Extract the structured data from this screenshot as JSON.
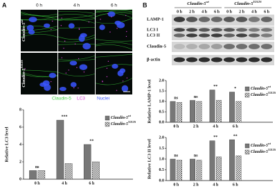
{
  "panel_a": {
    "label": "A",
    "columns": [
      "0 h",
      "4 h",
      "6 h"
    ],
    "rows": [
      {
        "name": "Claudin-5",
        "superscript": "wt"
      },
      {
        "name": "Claudin-5",
        "superscript": "Y212S"
      }
    ],
    "stain_legend": [
      {
        "name": "Claudin-5",
        "color": "#3ccf3c"
      },
      {
        "name": "LC3",
        "color": "#d23fd2"
      },
      {
        "name": "Nuclei",
        "color": "#3a55ff"
      }
    ],
    "chart": {
      "type": "bar",
      "y_label": "Relative LC3 level",
      "categories": [
        "0 h",
        "4 h",
        "6 h"
      ],
      "series": [
        {
          "name": "Claudin-5",
          "superscript": "wt",
          "color": "#777777",
          "values": [
            1.0,
            6.8,
            4.0
          ]
        },
        {
          "name": "Claudin-5",
          "superscript": "Y212S",
          "color": "#9a9a9a",
          "pattern": "checker",
          "values": [
            1.0,
            1.8,
            2.0
          ]
        }
      ],
      "significance": [
        "ns",
        "***",
        "**"
      ],
      "ylim": [
        0,
        8
      ],
      "yticks": [
        0,
        2,
        4,
        6,
        8
      ]
    }
  },
  "panel_b": {
    "label": "B",
    "blot": {
      "groups": [
        {
          "name": "Claudin-5",
          "superscript": "wt"
        },
        {
          "name": "Claudin-5",
          "superscript": "Y212S"
        }
      ],
      "lanes": [
        "0 h",
        "2 h",
        "4 h",
        "6 h",
        "0 h",
        "2 h",
        "4 h",
        "6 h"
      ],
      "bands": [
        "LAMP-1",
        "LC3 I",
        "LC3 II",
        "Claudin-5",
        "β-actin"
      ]
    },
    "charts": [
      {
        "type": "bar",
        "y_label": "Relative LAMP-1 level",
        "categories": [
          "0 h",
          "2 h",
          "4 h",
          "6 h"
        ],
        "series": [
          {
            "name": "Claudin-5",
            "superscript": "wt",
            "color": "#777777",
            "values": [
              1.0,
              1.05,
              1.55,
              1.45
            ]
          },
          {
            "name": "Claudin-5",
            "superscript": "Y212S",
            "color": "#9a9a9a",
            "pattern": "checker",
            "values": [
              0.95,
              1.0,
              1.05,
              1.0
            ]
          }
        ],
        "significance": [
          "ns",
          "ns",
          "**",
          "*"
        ],
        "ylim": [
          0,
          2
        ],
        "yticks": [
          {
            "value": 0,
            "label": "0.0"
          },
          0.5,
          {
            "value": 1,
            "label": "1.0"
          },
          1.5,
          {
            "value": 2,
            "label": "2.0"
          }
        ]
      },
      {
        "type": "bar",
        "y_label": "Relative LC3 II level",
        "categories": [
          "0 h",
          "2 h",
          "4 h",
          "6 h"
        ],
        "series": [
          {
            "name": "Claudin-5",
            "superscript": "wt",
            "color": "#777777",
            "values": [
              1.0,
              1.0,
              1.85,
              1.9
            ]
          },
          {
            "name": "Claudin-5",
            "superscript": "Y212S",
            "color": "#9a9a9a",
            "pattern": "checker",
            "values": [
              0.95,
              0.95,
              1.1,
              1.15
            ]
          }
        ],
        "significance": [
          "ns",
          "ns",
          "**",
          "**"
        ],
        "ylim": [
          0,
          2
        ],
        "yticks": [
          {
            "value": 0,
            "label": "0.0"
          },
          0.5,
          {
            "value": 1,
            "label": "1.0"
          },
          1.5,
          {
            "value": 2,
            "label": "2.0"
          }
        ]
      }
    ]
  }
}
